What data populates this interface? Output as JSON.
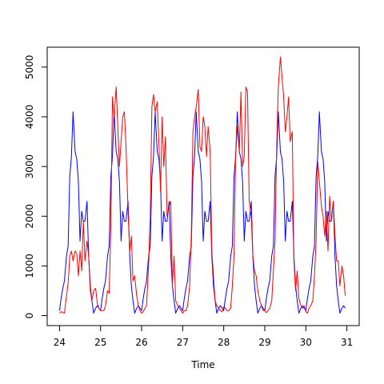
{
  "chart_data": {
    "type": "line",
    "title": "",
    "xlabel": "Time",
    "ylabel": "",
    "xlim": [
      23.7,
      31.3
    ],
    "ylim": [
      -200,
      5400
    ],
    "x_ticks": [
      24,
      25,
      26,
      27,
      28,
      29,
      30,
      31
    ],
    "y_ticks": [
      0,
      1000,
      2000,
      3000,
      4000,
      5000
    ],
    "x_tick_labels": [
      "24",
      "25",
      "26",
      "27",
      "28",
      "29",
      "30",
      "31"
    ],
    "y_tick_labels": [
      "0",
      "1000",
      "2000",
      "3000",
      "4000",
      "5000"
    ],
    "grid": false,
    "series": [
      {
        "color": "#0000ff",
        "x": [
          24.0,
          24.04,
          24.08,
          24.12,
          24.17,
          24.21,
          24.25,
          24.29,
          24.33,
          24.38,
          24.42,
          24.46,
          24.5,
          24.54,
          24.58,
          24.62,
          24.67,
          24.71,
          24.75,
          24.79,
          24.83,
          24.88,
          24.92,
          24.96,
          25.0,
          25.04,
          25.08,
          25.12,
          25.17,
          25.21,
          25.25,
          25.29,
          25.33,
          25.38,
          25.42,
          25.46,
          25.5,
          25.54,
          25.58,
          25.62,
          25.67,
          25.71,
          25.75,
          25.79,
          25.83,
          25.88,
          25.92,
          25.96,
          26.0,
          26.04,
          26.08,
          26.12,
          26.17,
          26.21,
          26.25,
          26.29,
          26.33,
          26.38,
          26.42,
          26.46,
          26.5,
          26.54,
          26.58,
          26.62,
          26.67,
          26.71,
          26.75,
          26.79,
          26.83,
          26.88,
          26.92,
          26.96,
          27.0,
          27.04,
          27.08,
          27.12,
          27.17,
          27.21,
          27.25,
          27.29,
          27.33,
          27.38,
          27.42,
          27.46,
          27.5,
          27.54,
          27.58,
          27.62,
          27.67,
          27.71,
          27.75,
          27.79,
          27.83,
          27.88,
          27.92,
          27.96,
          28.0,
          28.04,
          28.08,
          28.12,
          28.17,
          28.21,
          28.25,
          28.29,
          28.33,
          28.38,
          28.42,
          28.46,
          28.5,
          28.54,
          28.58,
          28.62,
          28.67,
          28.71,
          28.75,
          28.79,
          28.83,
          28.88,
          28.92,
          28.96,
          29.0,
          29.04,
          29.08,
          29.12,
          29.17,
          29.21,
          29.25,
          29.29,
          29.33,
          29.38,
          29.42,
          29.46,
          29.5,
          29.54,
          29.58,
          29.62,
          29.67,
          29.71,
          29.75,
          29.79,
          29.83,
          29.88,
          29.92,
          29.96,
          30.0,
          30.04,
          30.08,
          30.12,
          30.17,
          30.21,
          30.25,
          30.29,
          30.33,
          30.38,
          30.42,
          30.46,
          30.5,
          30.54,
          30.58,
          30.62,
          30.67,
          30.71,
          30.75,
          30.79,
          30.83,
          30.88,
          30.92,
          30.96
        ],
        "values": [
          100,
          350,
          550,
          700,
          1200,
          1400,
          2800,
          3200,
          4100,
          3300,
          3150,
          2700,
          1500,
          2100,
          1900,
          1900,
          2300,
          1200,
          600,
          300,
          50,
          150,
          200,
          150,
          100,
          350,
          550,
          700,
          1200,
          1400,
          2800,
          3200,
          4100,
          3300,
          3150,
          2700,
          1500,
          2100,
          1900,
          1900,
          2300,
          1200,
          600,
          300,
          50,
          150,
          200,
          150,
          100,
          350,
          550,
          700,
          1200,
          1400,
          2800,
          3200,
          4100,
          3300,
          3150,
          2700,
          1500,
          2100,
          1900,
          1900,
          2300,
          1200,
          600,
          300,
          50,
          150,
          200,
          150,
          100,
          350,
          550,
          700,
          1200,
          1400,
          2800,
          3200,
          4100,
          3300,
          3150,
          2700,
          1500,
          2100,
          1900,
          1900,
          2300,
          1200,
          600,
          300,
          50,
          150,
          200,
          150,
          100,
          350,
          550,
          700,
          1200,
          1400,
          2800,
          3200,
          4100,
          3300,
          3150,
          2700,
          1500,
          2100,
          1900,
          1900,
          2300,
          1200,
          600,
          300,
          50,
          150,
          200,
          150,
          100,
          350,
          550,
          700,
          1200,
          1400,
          2800,
          3200,
          4100,
          3300,
          3150,
          2700,
          1500,
          2100,
          1900,
          1900,
          2300,
          1200,
          600,
          300,
          50,
          150,
          200,
          150,
          100,
          350,
          550,
          700,
          1200,
          1400,
          2800,
          3200,
          4100,
          3300,
          3150,
          2700,
          1500,
          2100,
          1900,
          1900,
          2300,
          1200,
          600,
          300,
          50,
          150,
          200,
          150
        ]
      },
      {
        "color": "#ff0000",
        "x": [
          24.0,
          24.04,
          24.08,
          24.12,
          24.17,
          24.21,
          24.25,
          24.29,
          24.33,
          24.38,
          24.42,
          24.46,
          24.5,
          24.54,
          24.58,
          24.62,
          24.67,
          24.71,
          24.75,
          24.79,
          24.83,
          24.88,
          24.92,
          24.96,
          25.0,
          25.04,
          25.08,
          25.12,
          25.17,
          25.21,
          25.25,
          25.29,
          25.33,
          25.38,
          25.42,
          25.46,
          25.5,
          25.54,
          25.58,
          25.62,
          25.67,
          25.71,
          25.75,
          25.79,
          25.83,
          25.88,
          25.92,
          25.96,
          26.0,
          26.04,
          26.08,
          26.12,
          26.17,
          26.21,
          26.25,
          26.29,
          26.33,
          26.38,
          26.42,
          26.46,
          26.5,
          26.54,
          26.58,
          26.62,
          26.67,
          26.71,
          26.75,
          26.79,
          26.83,
          26.88,
          26.92,
          26.96,
          27.0,
          27.04,
          27.08,
          27.12,
          27.17,
          27.21,
          27.25,
          27.29,
          27.33,
          27.38,
          27.42,
          27.46,
          27.5,
          27.54,
          27.58,
          27.62,
          27.67,
          27.71,
          27.75,
          27.79,
          27.83,
          27.88,
          27.92,
          27.96,
          28.0,
          28.04,
          28.08,
          28.12,
          28.17,
          28.21,
          28.25,
          28.29,
          28.33,
          28.38,
          28.42,
          28.46,
          28.5,
          28.54,
          28.58,
          28.62,
          28.67,
          28.71,
          28.75,
          28.79,
          28.83,
          28.88,
          28.92,
          28.96,
          29.0,
          29.04,
          29.08,
          29.12,
          29.17,
          29.21,
          29.25,
          29.29,
          29.33,
          29.38,
          29.42,
          29.46,
          29.5,
          29.54,
          29.58,
          29.62,
          29.67,
          29.71,
          29.75,
          29.79,
          29.83,
          29.88,
          29.92,
          29.96,
          30.0,
          30.04,
          30.08,
          30.12,
          30.17,
          30.21,
          30.25,
          30.29,
          30.33,
          30.38,
          30.42,
          30.46,
          30.5,
          30.54,
          30.58,
          30.62,
          30.67,
          30.71,
          30.75,
          30.79,
          30.83,
          30.88,
          30.92,
          30.96
        ],
        "values": [
          50,
          80,
          60,
          50,
          400,
          650,
          1200,
          1300,
          1100,
          1300,
          1250,
          800,
          1300,
          900,
          1900,
          1100,
          1500,
          1200,
          500,
          300,
          500,
          550,
          250,
          150,
          100,
          100,
          100,
          200,
          500,
          450,
          1800,
          4400,
          4000,
          4600,
          3800,
          3000,
          3500,
          4000,
          4100,
          3400,
          2100,
          1300,
          1600,
          700,
          800,
          400,
          200,
          100,
          50,
          80,
          150,
          200,
          1000,
          2000,
          4200,
          4450,
          4100,
          4300,
          3500,
          2500,
          4000,
          3000,
          3600,
          2000,
          2200,
          2300,
          600,
          1200,
          300,
          200,
          150,
          100,
          50,
          100,
          100,
          200,
          600,
          1600,
          3700,
          4000,
          4200,
          4550,
          3400,
          3300,
          4000,
          3800,
          3200,
          3800,
          3300,
          1300,
          800,
          300,
          200,
          150,
          100,
          80,
          180,
          150,
          100,
          100,
          150,
          600,
          1200,
          3200,
          3800,
          3300,
          4500,
          3000,
          3200,
          4600,
          4500,
          2300,
          2000,
          1200,
          900,
          800,
          500,
          300,
          200,
          100,
          100,
          60,
          100,
          150,
          300,
          900,
          1500,
          3400,
          4600,
          5200,
          4800,
          4400,
          3700,
          4000,
          4400,
          3500,
          3700,
          1100,
          500,
          900,
          350,
          200,
          150,
          200,
          80,
          50,
          150,
          200,
          300,
          800,
          1500,
          3100,
          2700,
          2200,
          2000,
          1600,
          2100,
          1300,
          2400,
          1900,
          2300,
          1600,
          1100,
          1100,
          600,
          1000,
          800,
          400
        ]
      }
    ]
  }
}
